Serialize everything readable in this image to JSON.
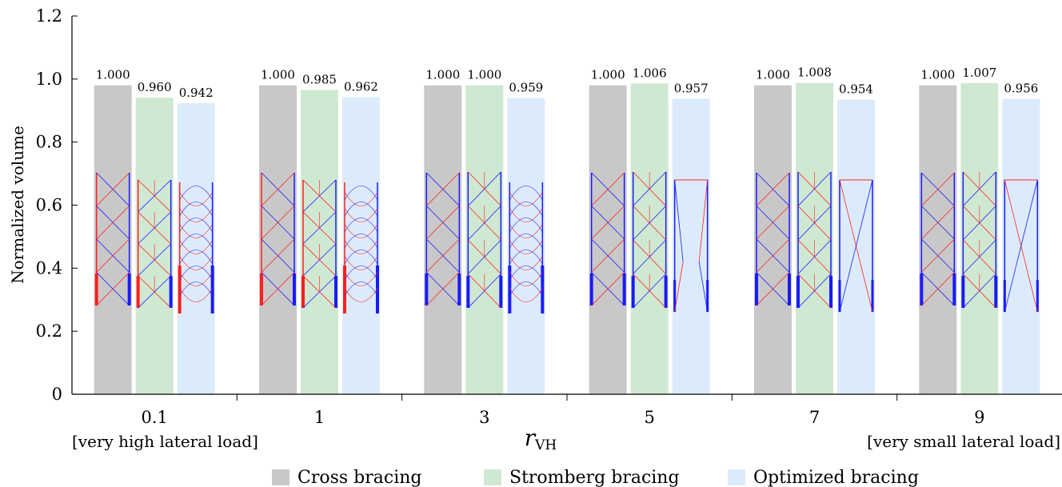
{
  "chart_data": {
    "type": "bar",
    "ylabel": "Normalized volume",
    "xlabel_main": "r",
    "xlabel_sub": "VH",
    "ylim": [
      0,
      1.2
    ],
    "yticks": [
      "0",
      "0.2",
      "0.4",
      "0.6",
      "0.8",
      "1.0",
      "1.2"
    ],
    "categories": [
      "0.1",
      "1",
      "3",
      "5",
      "7",
      "9"
    ],
    "category_notes": {
      "left": "[very high lateral load]",
      "right": "[very small lateral load]"
    },
    "series": [
      {
        "name": "Cross bracing",
        "color": "#c8c8c8",
        "values": [
          1.0,
          1.0,
          1.0,
          1.0,
          1.0,
          1.0
        ],
        "labels": [
          "1.000",
          "1.000",
          "1.000",
          "1.000",
          "1.000",
          "1.000"
        ]
      },
      {
        "name": "Stromberg bracing",
        "color": "#cfe8d1",
        "values": [
          0.96,
          0.985,
          1.0,
          1.006,
          1.008,
          1.007
        ],
        "labels": [
          "0.960",
          "0.985",
          "1.000",
          "1.006",
          "1.008",
          "1.007"
        ]
      },
      {
        "name": "Optimized bracing",
        "color": "#dcebfb",
        "values": [
          0.942,
          0.962,
          0.959,
          0.957,
          0.954,
          0.956
        ],
        "labels": [
          "0.942",
          "0.962",
          "0.959",
          "0.957",
          "0.954",
          "0.956"
        ]
      }
    ],
    "structure_colors": {
      "tension": "#ff2020",
      "compression": "#1a1aff"
    },
    "legend_position": "bottom",
    "grid": false
  }
}
